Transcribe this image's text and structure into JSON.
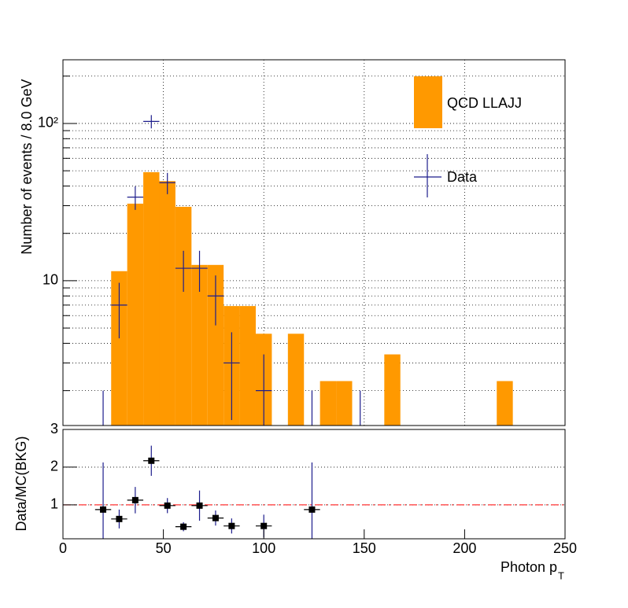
{
  "chart_data": [
    {
      "type": "histogram",
      "y_label": "Number of events / 8.0 GeV",
      "log_y": true,
      "grid": true,
      "xlim": [
        0,
        250
      ],
      "xticks": [
        0,
        50,
        100,
        150,
        200,
        250
      ],
      "ylim": [
        1.2,
        254
      ],
      "yticks": [
        10,
        {
          "value": 100,
          "label": "10²"
        }
      ],
      "minor_yticks": [
        2,
        3,
        4,
        5,
        6,
        7,
        8,
        9,
        20,
        30,
        40,
        50,
        60,
        70,
        80,
        90,
        200
      ],
      "bins": [
        24,
        32,
        40,
        48,
        56,
        64,
        72,
        80,
        88,
        96,
        104,
        112,
        120,
        128,
        136,
        144,
        152,
        160,
        168,
        176,
        184,
        192,
        200,
        208,
        216,
        224
      ],
      "series": [
        {
          "name": "QCD LLAJJ",
          "color": "#ff9900",
          "kind": "histogram",
          "values": [
            11.5,
            30.9,
            49,
            43,
            29.5,
            12.6,
            12.6,
            6.9,
            6.9,
            4.6,
            0,
            4.6,
            0,
            2.3,
            2.3,
            0,
            0,
            3.4,
            0,
            0,
            0,
            0,
            0,
            0,
            2.3
          ]
        },
        {
          "name": "Data",
          "color": "#1c1c8c",
          "kind": "points",
          "xerr": 4,
          "x": [
            20,
            28,
            36,
            44,
            52,
            60,
            68,
            76,
            84,
            100,
            124,
            148
          ],
          "values": [
            1,
            7,
            34,
            103,
            42,
            12,
            12,
            8,
            3,
            2,
            1,
            1
          ],
          "errors": [
            1,
            2.7,
            5.8,
            10,
            6.5,
            3.5,
            3.5,
            2.8,
            1.7,
            1.4,
            1,
            1
          ]
        }
      ]
    },
    {
      "type": "scatter",
      "y_label": "Data/MC(BKG)",
      "x_label": "Photon p",
      "x_label_subscript": "T",
      "grid": true,
      "xlim": [
        0,
        250
      ],
      "xticks": [
        0,
        50,
        100,
        150,
        200,
        250
      ],
      "ylim": [
        0.1,
        3
      ],
      "yticks": [
        1,
        2,
        3
      ],
      "reference_line": 1,
      "reference_color": "#ff0000",
      "series": [
        {
          "color": "#000000",
          "error_color": "#1c1c8c",
          "xerr": 4,
          "x": [
            20,
            28,
            36,
            44,
            52,
            60,
            68,
            76,
            84,
            100,
            124
          ],
          "values": [
            0.875,
            0.625,
            1.125,
            2.17,
            0.98,
            0.42,
            0.98,
            0.65,
            0.44,
            0.44,
            0.875
          ],
          "errors": [
            1.25,
            0.25,
            0.35,
            0.4,
            0.2,
            0.12,
            0.4,
            0.2,
            0.2,
            0.3,
            1.25
          ]
        }
      ]
    }
  ]
}
